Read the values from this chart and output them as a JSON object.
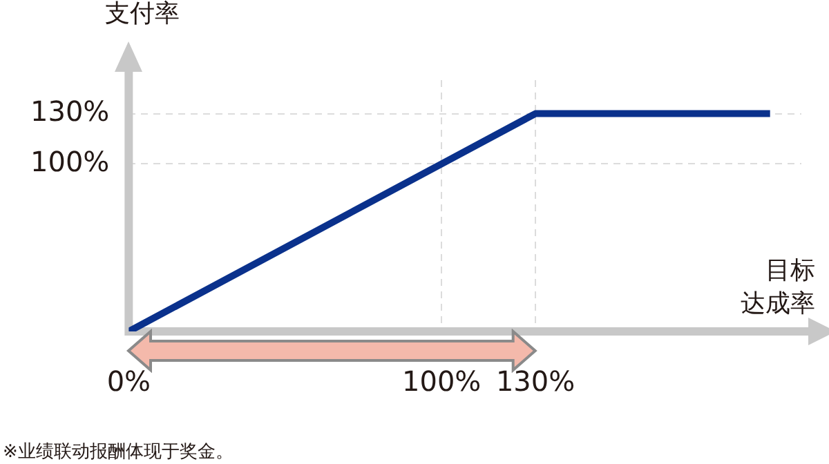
{
  "chart_data": {
    "type": "line",
    "ylabel": "支付率",
    "xlabel": "目标达成率",
    "x": [
      0,
      100,
      130,
      205
    ],
    "series": [
      {
        "color": "#0a318c",
        "values": [
          0,
          100,
          130,
          130
        ]
      }
    ],
    "xlim": [
      0,
      215
    ],
    "ylim": [
      0,
      150
    ],
    "xticks": [
      {
        "value": 0,
        "label": "0%"
      },
      {
        "value": 100,
        "label": "100%"
      },
      {
        "value": 130,
        "label": "130%"
      }
    ],
    "yticks": [
      {
        "value": 100,
        "label": "100%"
      },
      {
        "value": 130,
        "label": "130%"
      }
    ],
    "grid": true,
    "legend": false,
    "marker": "none",
    "line_style": "solid",
    "annotations": [
      "※业绩联动报酬体现于奖金。"
    ]
  }
}
